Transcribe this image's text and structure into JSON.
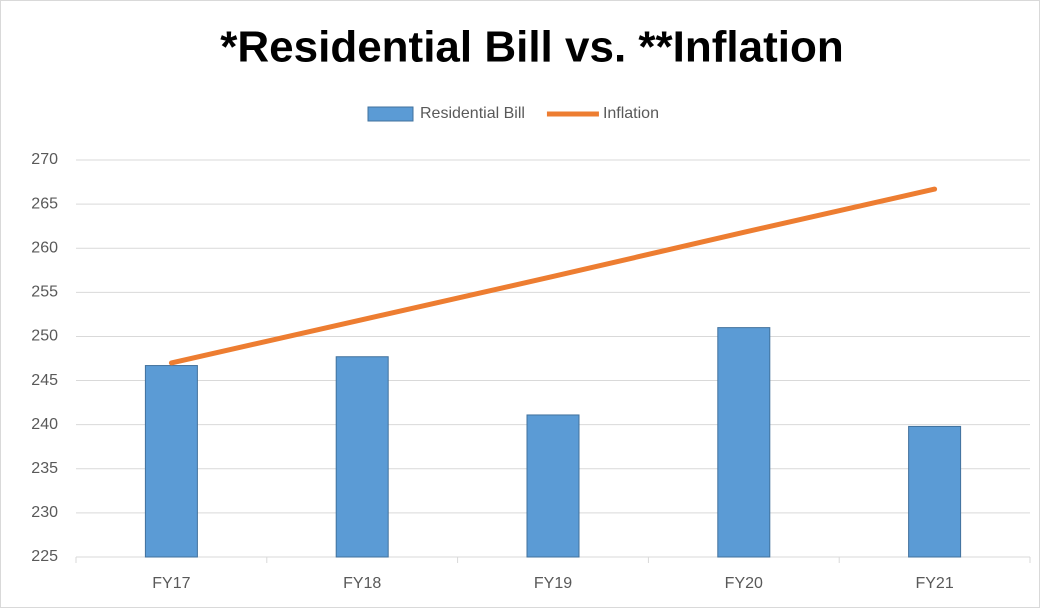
{
  "chart_data": {
    "type": "bar_line",
    "title": "*Residential Bill vs. **Inflation",
    "categories": [
      "FY17",
      "FY18",
      "FY19",
      "FY20",
      "FY21"
    ],
    "series": [
      {
        "name": "Residential Bill",
        "type": "bar",
        "color": "#5b9bd5",
        "values": [
          246.7,
          247.7,
          241.1,
          251.0,
          239.8
        ]
      },
      {
        "name": "Inflation",
        "type": "line",
        "color": "#ed7d31",
        "values": [
          247.0,
          251.9,
          256.8,
          261.8,
          266.7
        ]
      }
    ],
    "ylim": [
      225,
      270
    ],
    "yticks": [
      225,
      230,
      235,
      240,
      245,
      250,
      255,
      260,
      265,
      270
    ],
    "grid": true,
    "legend": "top"
  }
}
